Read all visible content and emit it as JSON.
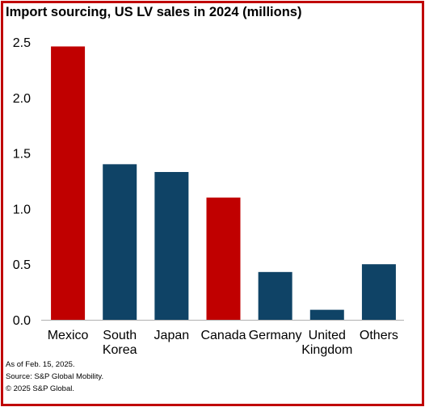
{
  "chart_data": {
    "type": "bar",
    "title": "Import sourcing, US LV sales in 2024 (millions)",
    "categories": [
      [
        "Mexico"
      ],
      [
        "South",
        "Korea"
      ],
      [
        "Japan"
      ],
      [
        "Canada"
      ],
      [
        "Germany"
      ],
      [
        "United",
        "Kingdom"
      ],
      [
        "Others"
      ]
    ],
    "values": [
      2.46,
      1.4,
      1.33,
      1.1,
      0.43,
      0.09,
      0.5
    ],
    "colors": [
      "#c00000",
      "#0f4366",
      "#0f4366",
      "#c00000",
      "#0f4366",
      "#0f4366",
      "#0f4366"
    ],
    "yticks": [
      "0.0",
      "0.5",
      "1.0",
      "1.5",
      "2.0",
      "2.5"
    ],
    "ylim": [
      0,
      2.5
    ],
    "grid": false,
    "xlabel": "",
    "ylabel": ""
  },
  "footnotes": [
    "As of Feb. 15, 2025.",
    "Source: S&P Global Mobility.",
    "© 2025 S&P Global."
  ]
}
